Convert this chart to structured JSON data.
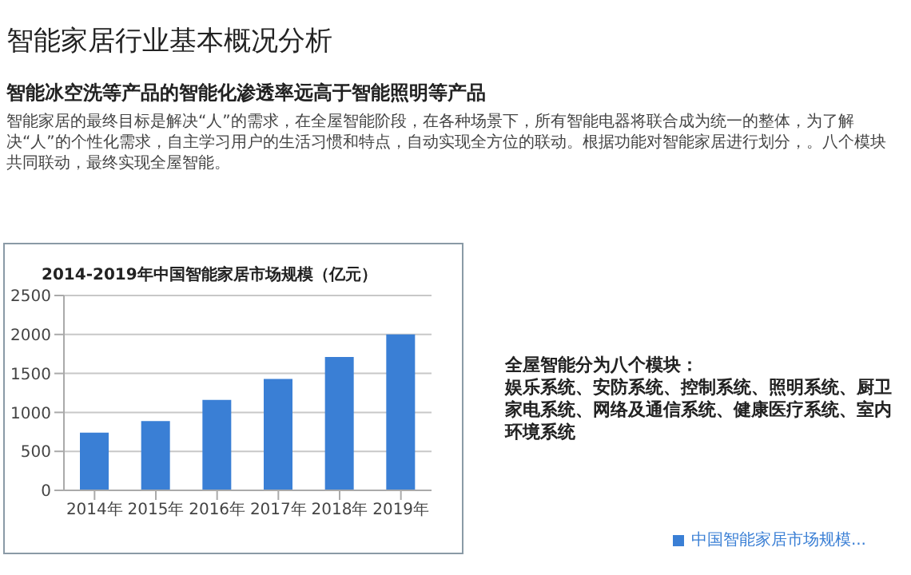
{
  "chart_data": {
    "type": "bar",
    "title": "2014-2019年中国智能家居市场规模（亿元）",
    "annotations": [
      "智能家居行业基本概况分析",
      "智能冰空洗等产品的智能化渗透率远高于智能照明等产品",
      "智能家居的最终目标是解决“人”的需求，在全屋智能阶段，在各种场景下，所有智能电器将联合成为统一的整体，为了解决“人”的个性化需求，自主学习用户的生活习惯和特点，自动实现全方位的联动。根据功能对智能家居进行划分，。八个模块共同联动，最终实现全屋智能。",
      "全屋智能分为八个模块：",
      "娱乐系统、安防系统、控制系统、照明系统、厨卫家电系统、网络及通信系统、健康医疗系统、室内环境系统"
    ],
    "categories": [
      "2014年",
      "2015年",
      "2016年",
      "2017年",
      "2018年",
      "2019年"
    ],
    "series": [
      {
        "name": "中国智能家居市场规模...",
        "color": "#3a7fd5",
        "values": [
          740,
          890,
          1160,
          1430,
          1710,
          2000
        ]
      }
    ],
    "ylim": [
      0,
      2500
    ],
    "yticks": [
      0,
      500,
      1000,
      1500,
      2000,
      2500
    ],
    "grid": "y",
    "legend": "bottom right"
  }
}
